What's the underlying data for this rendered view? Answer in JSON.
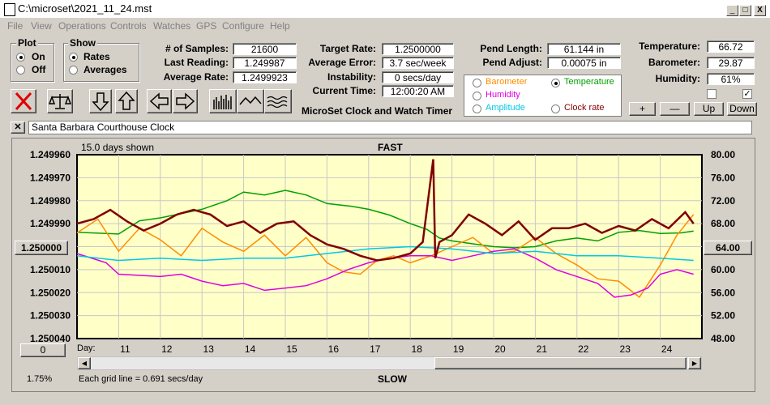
{
  "window": {
    "title": "C:\\microset\\2021_11_24.mst",
    "buttons": [
      "_",
      "□",
      "X"
    ]
  },
  "menu": [
    "File",
    "View",
    "Operations",
    "Controls",
    "Watches",
    "GPS",
    "Configure",
    "Help"
  ],
  "plot_group": {
    "label": "Plot",
    "options": [
      "On",
      "Off"
    ],
    "selected": "On"
  },
  "show_group": {
    "label": "Show",
    "options": [
      "Rates",
      "Averages"
    ],
    "selected": "Rates"
  },
  "stats": {
    "samples_label": "# of Samples:",
    "samples": "21600",
    "last_reading_label": "Last Reading:",
    "last_reading": "1.249987",
    "average_rate_label": "Average Rate:",
    "average_rate": "1.2499923"
  },
  "rates": {
    "target_rate_label": "Target Rate:",
    "target_rate": "1.2500000",
    "average_error_label": "Average Error:",
    "average_error": "3.7 sec/week",
    "instability_label": "Instability:",
    "instability": "0 secs/day",
    "current_time_label": "Current Time:",
    "current_time": "12:00:20 AM",
    "app_name": "MicroSet Clock and Watch Timer"
  },
  "pendulum": {
    "length_label": "Pend Length:",
    "length": "61.144 in",
    "adjust_label": "Pend Adjust:",
    "adjust": "0.00075 in"
  },
  "series_select": {
    "options": [
      {
        "label": "Barometer",
        "color": "#ff8c00",
        "selected": false
      },
      {
        "label": "Temperature",
        "color": "#00a000",
        "selected": true
      },
      {
        "label": "Humidity",
        "color": "#e000e0",
        "selected": false
      },
      {
        "label": "Clock rate",
        "color": "#800000",
        "selected": false
      },
      {
        "label": "Amplitude",
        "color": "#00c8e6",
        "selected": false
      }
    ]
  },
  "environment": {
    "temperature_label": "Temperature:",
    "temperature": "66.72",
    "barometer_label": "Barometer:",
    "barometer": "29.87",
    "humidity_label": "Humidity:",
    "humidity": "61%",
    "checkbox1": false,
    "checkbox2": true
  },
  "scale_buttons": [
    "+",
    "—",
    "Up",
    "Down"
  ],
  "toolbar_icons": [
    "stop-icon",
    "balance-icon",
    "down-arrow-icon",
    "up-arrow-icon",
    "left-arrow-icon",
    "right-arrow-icon",
    "bars-icon",
    "wave-icon",
    "smooth-icon"
  ],
  "clock_name": "Santa Barbara Courthouse Clock",
  "chart": {
    "days_shown": "15.0 days shown",
    "top_label": "FAST",
    "bottom_label": "SLOW",
    "grid_note": "Each grid line = 0.691 secs/day",
    "zoom": "1.75%",
    "day_label": "Day:",
    "center_left": "1.250000",
    "center_right": "64.00",
    "left_bottom_button": "0",
    "bottom_button": "X"
  },
  "chart_data": {
    "type": "line",
    "left_axis_ticks": [
      "1.249960",
      "1.249970",
      "1.249980",
      "1.249990",
      "1.250000",
      "1.250010",
      "1.250020",
      "1.250030",
      "1.250040"
    ],
    "right_axis_ticks": [
      "80.00",
      "76.00",
      "72.00",
      "68.00",
      "64.00",
      "60.00",
      "56.00",
      "52.00",
      "48.00"
    ],
    "x_ticks": [
      "11",
      "12",
      "13",
      "14",
      "15",
      "16",
      "17",
      "18",
      "19",
      "20",
      "21",
      "22",
      "23",
      "24"
    ],
    "xlim": [
      10,
      25
    ],
    "ylim_rate": [
      1.24996,
      1.25004
    ],
    "ylim_env": [
      48,
      80
    ],
    "series": [
      {
        "name": "Temperature",
        "color": "#00a000",
        "axis": "env",
        "x": [
          10.0,
          11.0,
          11.5,
          12.0,
          13.0,
          13.6,
          14.0,
          14.5,
          15.0,
          15.5,
          16.0,
          16.6,
          17.0,
          17.5,
          18.0,
          18.4,
          18.7,
          19.0,
          19.5,
          20.0,
          20.5,
          21.0,
          21.5,
          22.0,
          22.5,
          23.0,
          23.5,
          24.0,
          24.5,
          24.8
        ],
        "y": [
          66.5,
          66.2,
          68.5,
          69.0,
          70.5,
          72.0,
          73.5,
          73.0,
          73.8,
          73.0,
          71.5,
          71.0,
          70.5,
          69.5,
          68.0,
          67.0,
          65.5,
          65.0,
          64.5,
          64.0,
          63.8,
          64.0,
          65.0,
          65.5,
          65.0,
          66.5,
          66.8,
          66.3,
          66.4,
          66.7
        ]
      },
      {
        "name": "Barometer",
        "color": "#ff8c00",
        "axis": "rate",
        "x": [
          10.0,
          10.5,
          11.0,
          11.5,
          12.0,
          12.5,
          13.0,
          13.5,
          14.0,
          14.5,
          15.0,
          15.5,
          16.0,
          16.4,
          16.8,
          17.2,
          17.6,
          18.0,
          18.5,
          19.0,
          19.5,
          20.0,
          20.5,
          21.0,
          21.5,
          22.0,
          22.5,
          23.0,
          23.5,
          24.0,
          24.4,
          24.8
        ],
        "y": [
          1.249994,
          1.249988,
          1.250002,
          1.249992,
          1.249997,
          1.250004,
          1.249992,
          1.249998,
          1.250002,
          1.249995,
          1.250004,
          1.249996,
          1.250007,
          1.250011,
          1.250012,
          1.250006,
          1.250004,
          1.250007,
          1.250004,
          1.25,
          1.249996,
          1.250003,
          1.250002,
          1.249996,
          1.250003,
          1.250008,
          1.250014,
          1.250015,
          1.250022,
          1.250008,
          1.249995,
          1.249986
        ]
      },
      {
        "name": "Humidity",
        "color": "#e000e0",
        "axis": "rate",
        "x": [
          10.0,
          10.7,
          11.0,
          12.0,
          12.5,
          13.0,
          13.5,
          14.0,
          14.5,
          15.0,
          15.5,
          16.0,
          16.5,
          17.0,
          17.5,
          18.0,
          18.5,
          19.0,
          19.5,
          20.0,
          20.5,
          21.0,
          21.5,
          22.0,
          22.5,
          22.9,
          23.3,
          23.7,
          24.0,
          24.4,
          24.8
        ],
        "y": [
          1.250003,
          1.250007,
          1.250012,
          1.250013,
          1.250012,
          1.250015,
          1.250017,
          1.250016,
          1.250019,
          1.250018,
          1.250017,
          1.250014,
          1.25001,
          1.250007,
          1.250005,
          1.250004,
          1.250004,
          1.250006,
          1.250004,
          1.250002,
          1.250001,
          1.250005,
          1.25001,
          1.250013,
          1.250016,
          1.250022,
          1.250021,
          1.250018,
          1.250012,
          1.25001,
          1.250012
        ]
      },
      {
        "name": "Amplitude",
        "color": "#00c8e6",
        "axis": "rate",
        "x": [
          10.0,
          11.0,
          12.0,
          13.0,
          14.0,
          15.0,
          16.0,
          17.0,
          18.0,
          19.0,
          20.0,
          21.0,
          22.0,
          23.0,
          24.0,
          24.8
        ],
        "y": [
          1.250004,
          1.250006,
          1.250005,
          1.250006,
          1.250005,
          1.250005,
          1.250003,
          1.250001,
          1.25,
          1.250001,
          1.250003,
          1.250002,
          1.250004,
          1.250004,
          1.250005,
          1.250006
        ]
      },
      {
        "name": "Clock rate",
        "color": "#800000",
        "axis": "rate",
        "x": [
          10.0,
          10.4,
          10.8,
          11.2,
          11.6,
          12.0,
          12.4,
          12.8,
          13.2,
          13.6,
          14.0,
          14.4,
          14.8,
          15.2,
          15.6,
          16.0,
          16.4,
          16.8,
          17.2,
          17.6,
          18.0,
          18.3,
          18.55,
          18.6,
          18.7,
          19.0,
          19.4,
          19.8,
          20.2,
          20.6,
          21.0,
          21.4,
          21.8,
          22.2,
          22.6,
          23.0,
          23.4,
          23.8,
          24.2,
          24.6,
          24.8
        ],
        "y": [
          1.24999,
          1.249988,
          1.249984,
          1.249989,
          1.249993,
          1.24999,
          1.249986,
          1.249984,
          1.249986,
          1.249991,
          1.249989,
          1.249994,
          1.24999,
          1.249989,
          1.249995,
          1.249999,
          1.250001,
          1.250004,
          1.250006,
          1.250005,
          1.250003,
          1.249998,
          1.249962,
          1.250005,
          1.249998,
          1.249995,
          1.249986,
          1.24999,
          1.249995,
          1.249989,
          1.249997,
          1.249992,
          1.249992,
          1.24999,
          1.249994,
          1.249991,
          1.249993,
          1.249988,
          1.249992,
          1.249985,
          1.24999
        ]
      }
    ]
  }
}
